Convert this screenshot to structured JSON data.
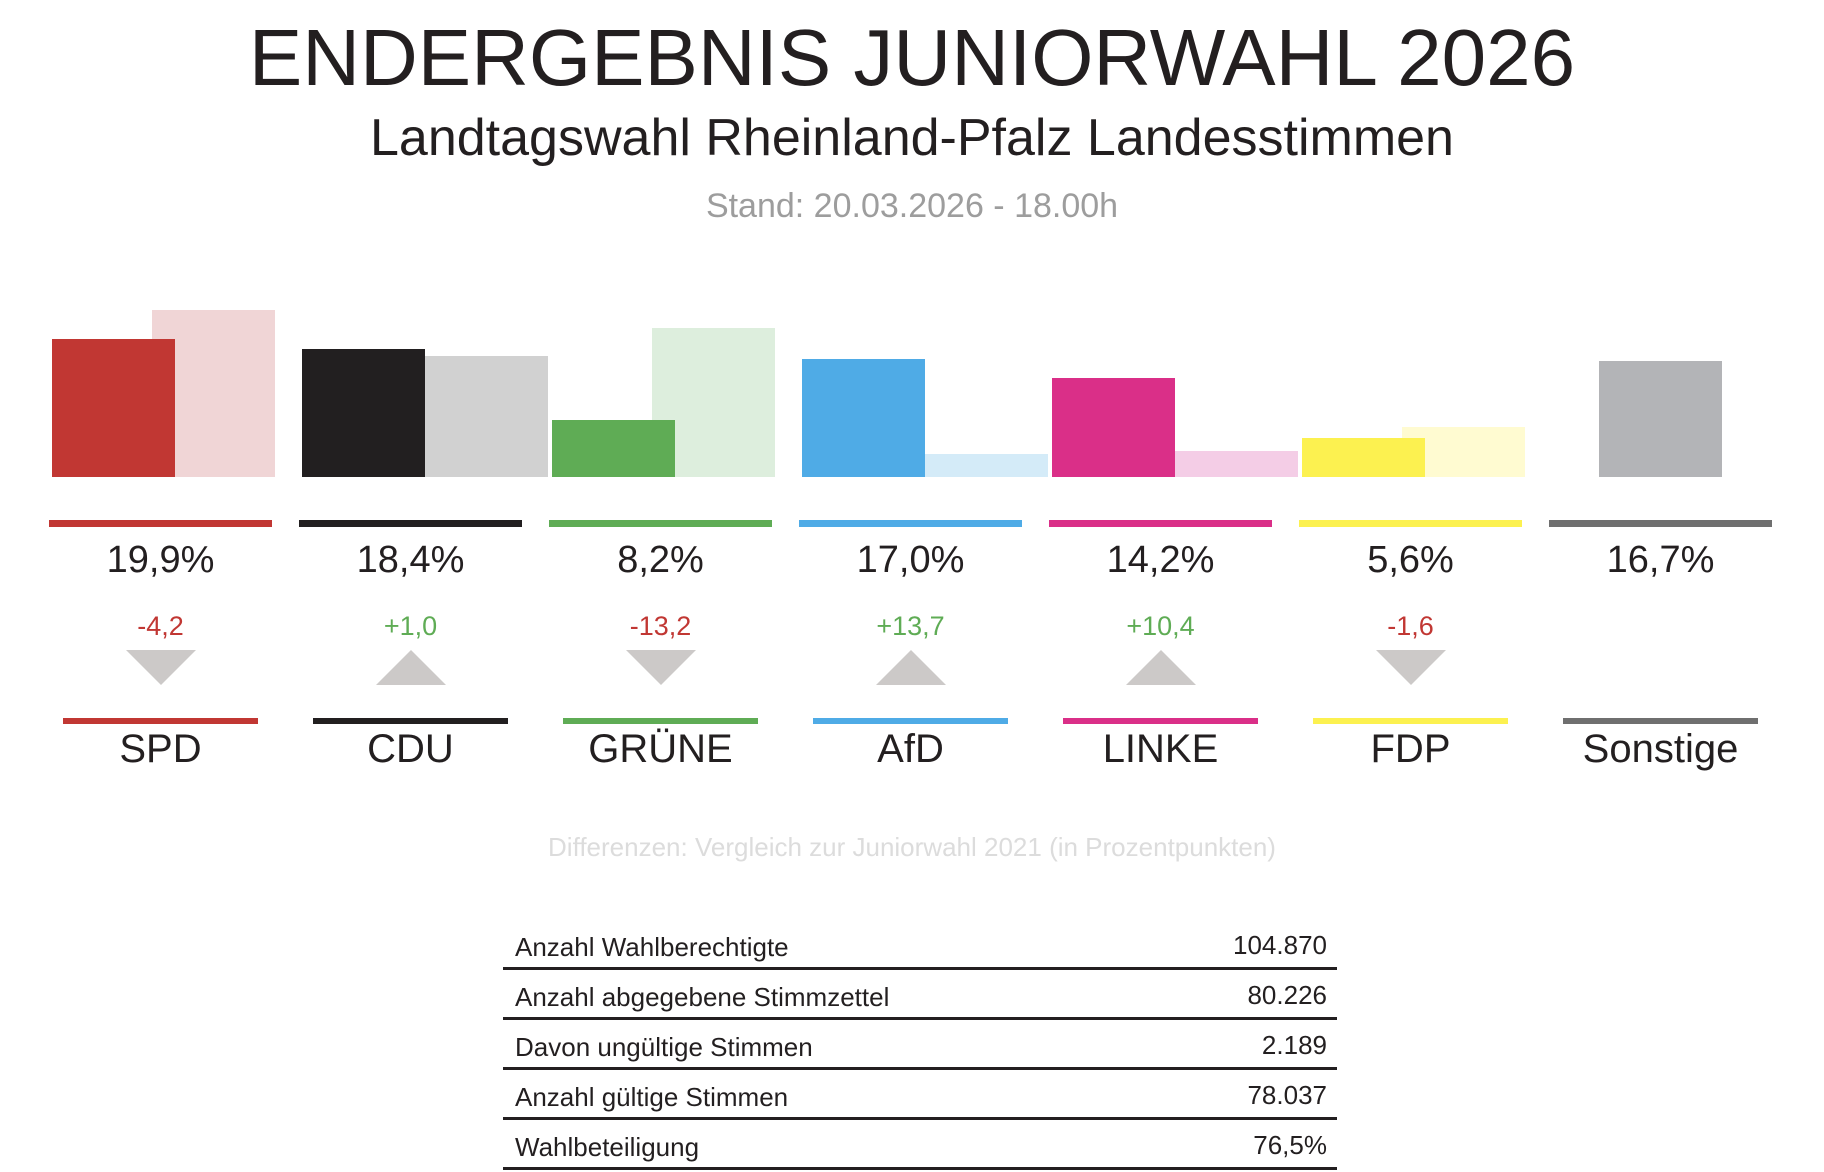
{
  "header": {
    "title": "ENDERGEBNIS JUNIORWAHL 2026",
    "subtitle": "Landtagswahl Rheinland-Pfalz Landesstimmen",
    "stand": "Stand: 20.03.2026 - 18.00h"
  },
  "note": "Differenzen: Vergleich zur Juniorwahl 2021 (in Prozentpunkten)",
  "colors": {
    "positive": "#5fac55",
    "negative": "#c13733",
    "arrow": "#ccc9c8"
  },
  "chart_data": {
    "type": "bar",
    "title": "ENDERGEBNIS JUNIORWAHL 2026",
    "subtitle": "Landtagswahl Rheinland-Pfalz Landesstimmen",
    "xlabel": "",
    "ylabel": "",
    "unit": "%",
    "grid": false,
    "categories": [
      "SPD",
      "CDU",
      "GRÜNE",
      "AfD",
      "LINKE",
      "FDP",
      "Sonstige"
    ],
    "series": [
      {
        "name": "Juniorwahl 2026",
        "values": [
          19.9,
          18.4,
          8.2,
          17.0,
          14.2,
          5.6,
          16.7
        ]
      },
      {
        "name": "Juniorwahl 2021",
        "values": [
          24.1,
          17.4,
          21.4,
          3.3,
          3.8,
          7.2,
          null
        ]
      }
    ],
    "diffs": [
      -4.2,
      1.0,
      -13.2,
      13.7,
      10.4,
      -1.6,
      null
    ],
    "ylim": [
      0,
      25
    ]
  },
  "parties": [
    {
      "name": "SPD",
      "pct": "19,9%",
      "diff": "-4,2",
      "direction": "down",
      "color": "#c13733",
      "prev_color": "#f0d5d6"
    },
    {
      "name": "CDU",
      "pct": "18,4%",
      "diff": "+1,0",
      "direction": "up",
      "color": "#221f20",
      "prev_color": "#d1d1d1"
    },
    {
      "name": "GRÜNE",
      "pct": "8,2%",
      "diff": "-13,2",
      "direction": "down",
      "color": "#5fac55",
      "prev_color": "#ddeedd"
    },
    {
      "name": "AfD",
      "pct": "17,0%",
      "diff": "+13,7",
      "direction": "up",
      "color": "#4fabe6",
      "prev_color": "#d4ebf8"
    },
    {
      "name": "LINKE",
      "pct": "14,2%",
      "diff": "+10,4",
      "direction": "up",
      "color": "#da2f88",
      "prev_color": "#f4cde6"
    },
    {
      "name": "FDP",
      "pct": "5,6%",
      "diff": "-1,6",
      "direction": "down",
      "color": "#fcf150",
      "prev_color": "#fffbd1"
    },
    {
      "name": "Sonstige",
      "pct": "16,7%",
      "diff": "",
      "direction": "none",
      "color": "#b3b4b7",
      "line_color": "#6f6f6f",
      "prev_color": ""
    }
  ],
  "stats": [
    {
      "label": "Anzahl Wahlberechtigte",
      "value": "104.870"
    },
    {
      "label": "Anzahl abgegebene Stimmzettel",
      "value": "80.226"
    },
    {
      "label": "Davon ungültige Stimmen",
      "value": "2.189"
    },
    {
      "label": "Anzahl gültige Stimmen",
      "value": "78.037"
    },
    {
      "label": "Wahlbeteiligung",
      "value": "76,5%"
    }
  ]
}
